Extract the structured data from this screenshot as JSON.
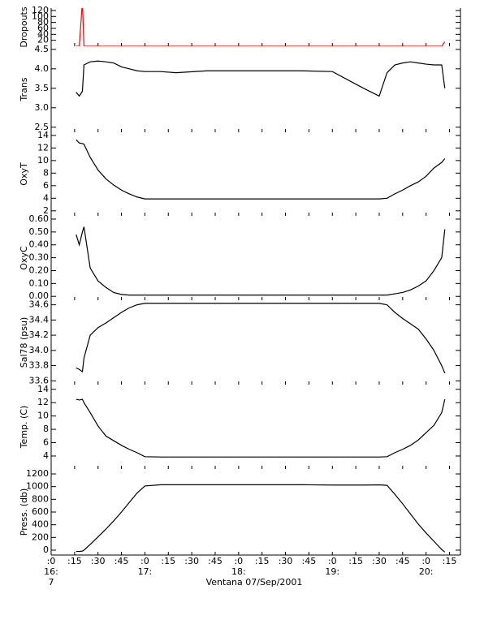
{
  "chart_data": [
    {
      "type": "line",
      "ylabel": "Dropouts",
      "xlim": [
        0,
        262
      ],
      "ylim": [
        0,
        128
      ],
      "yticks": [
        20,
        40,
        60,
        80,
        100,
        120
      ],
      "x": [
        16,
        18,
        20,
        21,
        25,
        30,
        35,
        40,
        45,
        50,
        55,
        60,
        70,
        80,
        100,
        120,
        140,
        160,
        180,
        200,
        210,
        215,
        220,
        225,
        230,
        235,
        240,
        245,
        250,
        252
      ],
      "series": [
        {
          "color": "#ff0000",
          "values": [
            0,
            0,
            150,
            0,
            0,
            0,
            0,
            0,
            0,
            0,
            0,
            0,
            0,
            0,
            0,
            0,
            0,
            0,
            0,
            0,
            0,
            0,
            0,
            0,
            0,
            0,
            0,
            0,
            0,
            15
          ]
        }
      ]
    },
    {
      "type": "line",
      "ylabel": "Trans",
      "xlim": [
        0,
        262
      ],
      "ylim": [
        2.37,
        4.58
      ],
      "yticks": [
        {
          "value": 2.5,
          "label": "2.5"
        },
        {
          "value": 3,
          "label": "3.0"
        },
        {
          "value": 3.5,
          "label": "3.5"
        },
        {
          "value": 4,
          "label": "4.0"
        },
        {
          "value": 4.5,
          "label": "4.5"
        }
      ],
      "x": [
        16,
        18,
        20,
        21,
        25,
        30,
        35,
        40,
        45,
        50,
        55,
        60,
        70,
        80,
        100,
        120,
        140,
        160,
        180,
        200,
        210,
        215,
        220,
        225,
        230,
        235,
        240,
        245,
        250,
        252
      ],
      "series": [
        {
          "color": "#000000",
          "values": [
            3.4,
            3.3,
            3.42,
            4.1,
            4.18,
            4.2,
            4.18,
            4.15,
            4.05,
            4.0,
            3.95,
            3.93,
            3.93,
            3.9,
            3.95,
            3.95,
            3.95,
            3.95,
            3.93,
            3.5,
            3.3,
            3.9,
            4.1,
            4.15,
            4.18,
            4.15,
            4.12,
            4.1,
            4.1,
            3.5
          ]
        }
      ]
    },
    {
      "type": "line",
      "ylabel": "OxyT",
      "xlim": [
        0,
        262
      ],
      "ylim": [
        1.2,
        14.5
      ],
      "yticks": [
        2,
        4,
        6,
        8,
        10,
        12,
        14
      ],
      "x": [
        16,
        18,
        20,
        21,
        25,
        30,
        35,
        40,
        45,
        50,
        55,
        60,
        70,
        80,
        100,
        120,
        140,
        160,
        180,
        200,
        210,
        215,
        220,
        225,
        230,
        235,
        240,
        245,
        250,
        252
      ],
      "series": [
        {
          "color": "#000000",
          "values": [
            13.3,
            12.8,
            12.7,
            12.6,
            10.5,
            8.5,
            7.1,
            6.1,
            5.3,
            4.7,
            4.2,
            3.9,
            3.9,
            3.9,
            3.9,
            3.9,
            3.9,
            3.9,
            3.9,
            3.9,
            3.9,
            4.0,
            4.7,
            5.3,
            6.0,
            6.6,
            7.5,
            8.8,
            9.7,
            10.3
          ]
        }
      ]
    },
    {
      "type": "line",
      "ylabel": "OxyC",
      "xlim": [
        0,
        262
      ],
      "ylim": [
        -0.03,
        0.625
      ],
      "yticks": [
        {
          "value": 0,
          "label": "0.00"
        },
        {
          "value": 0.1,
          "label": "0.10"
        },
        {
          "value": 0.2,
          "label": "0.20"
        },
        {
          "value": 0.3,
          "label": "0.30"
        },
        {
          "value": 0.4,
          "label": "0.40"
        },
        {
          "value": 0.5,
          "label": "0.50"
        },
        {
          "value": 0.6,
          "label": "0.60"
        }
      ],
      "x": [
        16,
        18,
        20,
        21,
        25,
        30,
        35,
        40,
        45,
        50,
        55,
        60,
        70,
        80,
        100,
        120,
        140,
        160,
        180,
        200,
        210,
        215,
        220,
        225,
        230,
        235,
        240,
        245,
        250,
        252
      ],
      "series": [
        {
          "color": "#000000",
          "values": [
            0.48,
            0.4,
            0.5,
            0.54,
            0.22,
            0.12,
            0.07,
            0.03,
            0.015,
            0.01,
            0.01,
            0.01,
            0.01,
            0.01,
            0.01,
            0.01,
            0.01,
            0.01,
            0.01,
            0.01,
            0.01,
            0.01,
            0.02,
            0.03,
            0.05,
            0.08,
            0.12,
            0.2,
            0.3,
            0.52
          ]
        }
      ]
    },
    {
      "type": "line",
      "ylabel": "Sal78 (psu)",
      "xlim": [
        0,
        262
      ],
      "ylim": [
        33.55,
        34.66
      ],
      "yticks": [
        33.6,
        33.8,
        {
          "value": 34,
          "label": "34.0"
        },
        34.2,
        34.4,
        34.6
      ],
      "x": [
        16,
        18,
        20,
        21,
        25,
        30,
        35,
        40,
        45,
        50,
        55,
        60,
        70,
        80,
        100,
        120,
        140,
        160,
        180,
        200,
        210,
        215,
        220,
        225,
        230,
        235,
        240,
        245,
        250,
        252
      ],
      "series": [
        {
          "color": "#000000",
          "values": [
            33.77,
            33.75,
            33.72,
            33.9,
            34.2,
            34.3,
            34.36,
            34.43,
            34.5,
            34.56,
            34.6,
            34.62,
            34.62,
            34.62,
            34.62,
            34.62,
            34.62,
            34.62,
            34.62,
            34.62,
            34.62,
            34.6,
            34.5,
            34.42,
            34.35,
            34.28,
            34.15,
            34.0,
            33.8,
            33.7
          ]
        }
      ]
    },
    {
      "type": "line",
      "ylabel": "Temp. (C)",
      "xlim": [
        0,
        262
      ],
      "ylim": [
        2.05,
        14.7
      ],
      "yticks": [
        4,
        6,
        8,
        10,
        12,
        14
      ],
      "x": [
        16,
        18,
        20,
        21,
        25,
        30,
        35,
        40,
        45,
        50,
        55,
        60,
        70,
        80,
        100,
        120,
        140,
        160,
        180,
        200,
        210,
        215,
        220,
        225,
        230,
        235,
        240,
        245,
        250,
        252
      ],
      "series": [
        {
          "color": "#000000",
          "values": [
            12.5,
            12.4,
            12.5,
            12.0,
            10.5,
            8.5,
            7.0,
            6.3,
            5.6,
            5.0,
            4.5,
            3.9,
            3.85,
            3.85,
            3.85,
            3.85,
            3.85,
            3.85,
            3.85,
            3.85,
            3.85,
            3.9,
            4.5,
            5.0,
            5.6,
            6.4,
            7.5,
            8.6,
            10.5,
            12.5
          ]
        }
      ]
    },
    {
      "type": "line",
      "ylabel": "Press. (db)",
      "xlabel": "Ventana 07/Sep/2001",
      "xlim": [
        0,
        262
      ],
      "ylim": [
        -77,
        1277
      ],
      "yticks": [
        0,
        200,
        400,
        600,
        800,
        1000,
        1200
      ],
      "xticks": [
        {
          "value": 0,
          "label": ":0"
        },
        {
          "value": 15,
          "label": ":15"
        },
        {
          "value": 30,
          "label": ":30"
        },
        {
          "value": 45,
          "label": ":45"
        },
        {
          "value": 60,
          "label": ":0"
        },
        {
          "value": 75,
          "label": ":15"
        },
        {
          "value": 90,
          "label": ":30"
        },
        {
          "value": 105,
          "label": ":45"
        },
        {
          "value": 120,
          "label": ":0"
        },
        {
          "value": 135,
          "label": ":15"
        },
        {
          "value": 150,
          "label": ":30"
        },
        {
          "value": 165,
          "label": ":45"
        },
        {
          "value": 180,
          "label": ":0"
        },
        {
          "value": 195,
          "label": ":15"
        },
        {
          "value": 210,
          "label": ":30"
        },
        {
          "value": 225,
          "label": ":45"
        },
        {
          "value": 240,
          "label": ":0"
        },
        {
          "value": 255,
          "label": ":15"
        }
      ],
      "hour_labels": [
        {
          "value": 0,
          "label": "16:"
        },
        {
          "value": 60,
          "label": "17:"
        },
        {
          "value": 120,
          "label": "18:"
        },
        {
          "value": 180,
          "label": "19:"
        },
        {
          "value": 240,
          "label": "20:"
        }
      ],
      "day_label": {
        "value": 0,
        "label": "7"
      },
      "x": [
        16,
        18,
        20,
        21,
        25,
        30,
        35,
        40,
        45,
        50,
        55,
        60,
        70,
        80,
        100,
        120,
        140,
        160,
        180,
        200,
        210,
        215,
        220,
        225,
        230,
        235,
        240,
        245,
        250,
        252
      ],
      "series": [
        {
          "color": "#000000",
          "values": [
            -20,
            -20,
            -15,
            0,
            90,
            210,
            330,
            460,
            600,
            750,
            900,
            1010,
            1030,
            1030,
            1030,
            1030,
            1030,
            1030,
            1025,
            1025,
            1028,
            1020,
            880,
            730,
            570,
            410,
            270,
            140,
            10,
            -30
          ]
        }
      ]
    }
  ]
}
